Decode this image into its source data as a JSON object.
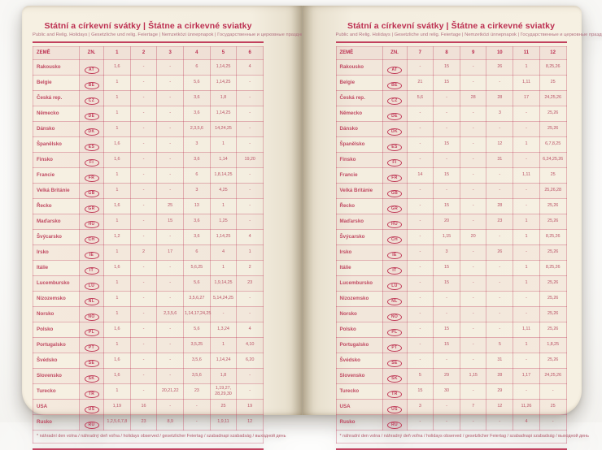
{
  "title": "Státní a církevní svátky | Štátne a cirkevné sviatky",
  "subtitle": "Public and Relig. Holidays | Gesetzliche und relig. Feiertage | Nemzetközi ünnepnapok | Государственные и церковные праздники",
  "footnote": "* náhradní den volna / náhradný deň voľna / holidays observed / gesetzlicher Feiertag / szabadnapi szabadság / выходной день",
  "colors": {
    "accent_red": "#bc2e50",
    "page_cream": "#f4eee0",
    "tint_pink": "rgba(188,46,80,0.07)"
  },
  "left_page": {
    "columns": [
      "ZEMĚ",
      "ZN.",
      "1",
      "2",
      "3",
      "4",
      "5",
      "6"
    ],
    "rows": [
      {
        "country": "Rakousko",
        "code": "AT",
        "values": [
          "1,6",
          "-",
          "-",
          "6",
          "1,14,25",
          "4"
        ]
      },
      {
        "country": "Belgie",
        "code": "BE",
        "values": [
          "1",
          "-",
          "-",
          "5,6",
          "1,14,25",
          "-"
        ]
      },
      {
        "country": "Česká rep.",
        "code": "CZ",
        "values": [
          "1",
          "-",
          "-",
          "3,6",
          "1,8",
          "-"
        ]
      },
      {
        "country": "Německo",
        "code": "DE",
        "values": [
          "1",
          "-",
          "-",
          "3,6",
          "1,14,25",
          "-"
        ]
      },
      {
        "country": "Dánsko",
        "code": "DK",
        "values": [
          "1",
          "-",
          "-",
          "2,3,5,6",
          "14,24,25",
          "-"
        ]
      },
      {
        "country": "Španělsko",
        "code": "ES",
        "values": [
          "1,6",
          "-",
          "-",
          "3",
          "1",
          "-"
        ]
      },
      {
        "country": "Finsko",
        "code": "FI",
        "values": [
          "1,6",
          "-",
          "-",
          "3,6",
          "1,14",
          "19,20"
        ]
      },
      {
        "country": "Francie",
        "code": "FR",
        "values": [
          "1",
          "-",
          "-",
          "6",
          "1,8,14,25",
          "-"
        ]
      },
      {
        "country": "Velká Británie",
        "code": "GB",
        "values": [
          "1",
          "-",
          "-",
          "3",
          "4,25",
          "-"
        ]
      },
      {
        "country": "Řecko",
        "code": "GR",
        "values": [
          "1,6",
          "-",
          "25",
          "13",
          "1",
          "-"
        ]
      },
      {
        "country": "Maďarsko",
        "code": "HU",
        "values": [
          "1",
          "-",
          "15",
          "3,6",
          "1,25",
          "-"
        ]
      },
      {
        "country": "Švýcarsko",
        "code": "CH",
        "values": [
          "1,2",
          "-",
          "-",
          "3,6",
          "1,14,25",
          "4"
        ]
      },
      {
        "country": "Irsko",
        "code": "IE",
        "values": [
          "1",
          "2",
          "17",
          "6",
          "4",
          "1"
        ]
      },
      {
        "country": "Itálie",
        "code": "IT",
        "values": [
          "1,6",
          "-",
          "-",
          "5,6,25",
          "1",
          "2"
        ]
      },
      {
        "country": "Lucembursko",
        "code": "LU",
        "values": [
          "1",
          "-",
          "-",
          "5,6",
          "1,9,14,25",
          "23"
        ]
      },
      {
        "country": "Nizozemsko",
        "code": "NL",
        "values": [
          "1",
          "-",
          "-",
          "3,5,6,27",
          "5,14,24,25",
          "-"
        ]
      },
      {
        "country": "Norsko",
        "code": "NO",
        "values": [
          "1",
          "-",
          "2,3,5,6",
          "1,14,17,24,25",
          "-",
          "-"
        ]
      },
      {
        "country": "Polsko",
        "code": "PL",
        "values": [
          "1,6",
          "-",
          "-",
          "5,6",
          "1,3,24",
          "4"
        ]
      },
      {
        "country": "Portugalsko",
        "code": "PT",
        "values": [
          "1",
          "-",
          "-",
          "3,5,25",
          "1",
          "4,10"
        ]
      },
      {
        "country": "Švédsko",
        "code": "SE",
        "values": [
          "1,6",
          "-",
          "-",
          "3,5,6",
          "1,14,24",
          "6,20"
        ]
      },
      {
        "country": "Slovensko",
        "code": "SK",
        "values": [
          "1,6",
          "-",
          "-",
          "3,5,6",
          "1,8",
          "-"
        ]
      },
      {
        "country": "Turecko",
        "code": "TR",
        "values": [
          "1",
          "-",
          "20,21,22",
          "23",
          "1,19,27, 28,29,30",
          "-"
        ]
      },
      {
        "country": "USA",
        "code": "US",
        "values": [
          "1,19",
          "16",
          "-",
          "-",
          "25",
          "19"
        ]
      },
      {
        "country": "Rusko",
        "code": "RU",
        "values": [
          "1,2,5,6,7,8",
          "23",
          "8,9",
          "-",
          "1,9,11",
          "12"
        ]
      }
    ]
  },
  "right_page": {
    "columns": [
      "ZEMĚ",
      "ZN.",
      "7",
      "8",
      "9",
      "10",
      "11",
      "12"
    ],
    "rows": [
      {
        "country": "Rakousko",
        "code": "AT",
        "values": [
          "-",
          "15",
          "-",
          "26",
          "1",
          "8,25,26"
        ]
      },
      {
        "country": "Belgie",
        "code": "BE",
        "values": [
          "21",
          "15",
          "-",
          "-",
          "1,11",
          "25"
        ]
      },
      {
        "country": "Česká rep.",
        "code": "CZ",
        "values": [
          "5,6",
          "-",
          "28",
          "28",
          "17",
          "24,25,26"
        ]
      },
      {
        "country": "Německo",
        "code": "DE",
        "values": [
          "-",
          "-",
          "-",
          "3",
          "-",
          "25,26"
        ]
      },
      {
        "country": "Dánsko",
        "code": "DK",
        "values": [
          "-",
          "-",
          "-",
          "-",
          "-",
          "25,26"
        ]
      },
      {
        "country": "Španělsko",
        "code": "ES",
        "values": [
          "-",
          "15",
          "-",
          "12",
          "1",
          "6,7,8,25"
        ]
      },
      {
        "country": "Finsko",
        "code": "FI",
        "values": [
          "-",
          "-",
          "-",
          "31",
          "-",
          "6,24,25,26"
        ]
      },
      {
        "country": "Francie",
        "code": "FR",
        "values": [
          "14",
          "15",
          "-",
          "-",
          "1,11",
          "25"
        ]
      },
      {
        "country": "Velká Británie",
        "code": "GB",
        "values": [
          "-",
          "-",
          "-",
          "-",
          "-",
          "25,26,28"
        ]
      },
      {
        "country": "Řecko",
        "code": "GR",
        "values": [
          "-",
          "15",
          "-",
          "28",
          "-",
          "25,26"
        ]
      },
      {
        "country": "Maďarsko",
        "code": "HU",
        "values": [
          "-",
          "20",
          "-",
          "23",
          "1",
          "25,26"
        ]
      },
      {
        "country": "Švýcarsko",
        "code": "CH",
        "values": [
          "-",
          "1,15",
          "20",
          "-",
          "1",
          "8,25,26"
        ]
      },
      {
        "country": "Irsko",
        "code": "IE",
        "values": [
          "-",
          "3",
          "-",
          "26",
          "-",
          "25,26"
        ]
      },
      {
        "country": "Itálie",
        "code": "IT",
        "values": [
          "-",
          "15",
          "-",
          "-",
          "1",
          "8,25,26"
        ]
      },
      {
        "country": "Lucembursko",
        "code": "LU",
        "values": [
          "-",
          "15",
          "-",
          "-",
          "1",
          "25,26"
        ]
      },
      {
        "country": "Nizozemsko",
        "code": "NL",
        "values": [
          "-",
          "-",
          "-",
          "-",
          "-",
          "25,26"
        ]
      },
      {
        "country": "Norsko",
        "code": "NO",
        "values": [
          "-",
          "-",
          "-",
          "-",
          "-",
          "25,26"
        ]
      },
      {
        "country": "Polsko",
        "code": "PL",
        "values": [
          "-",
          "15",
          "-",
          "-",
          "1,11",
          "25,26"
        ]
      },
      {
        "country": "Portugalsko",
        "code": "PT",
        "values": [
          "-",
          "15",
          "-",
          "5",
          "1",
          "1,8,25"
        ]
      },
      {
        "country": "Švédsko",
        "code": "SE",
        "values": [
          "-",
          "-",
          "-",
          "31",
          "-",
          "25,26"
        ]
      },
      {
        "country": "Slovensko",
        "code": "SK",
        "values": [
          "5",
          "29",
          "1,15",
          "28",
          "1,17",
          "24,25,26"
        ]
      },
      {
        "country": "Turecko",
        "code": "TR",
        "values": [
          "15",
          "30",
          "-",
          "29",
          "-",
          "-"
        ]
      },
      {
        "country": "USA",
        "code": "US",
        "values": [
          "3",
          "-",
          "7",
          "12",
          "11,26",
          "25"
        ]
      },
      {
        "country": "Rusko",
        "code": "RU",
        "values": [
          "-",
          "-",
          "-",
          "-",
          "4",
          "-"
        ]
      }
    ]
  }
}
